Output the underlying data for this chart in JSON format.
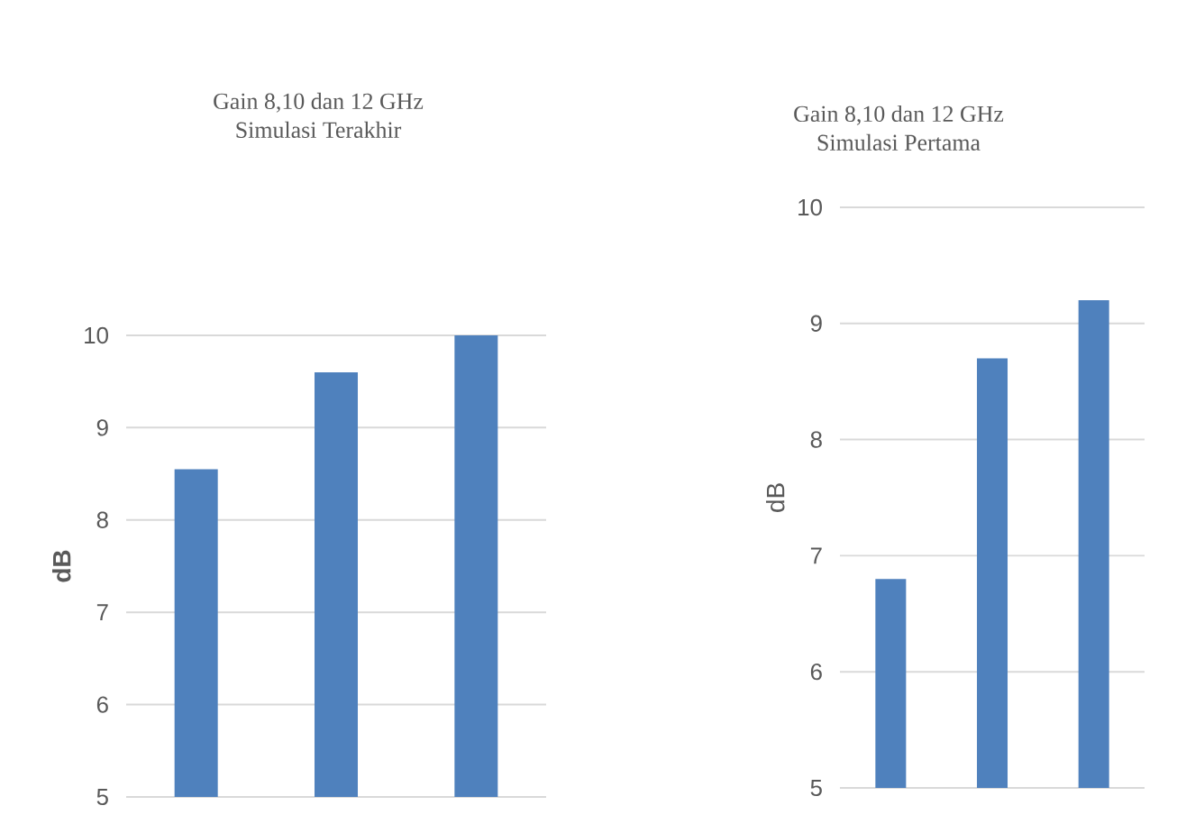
{
  "chart_data": [
    {
      "type": "bar",
      "title": "Gain 8,10 dan 12 GHz",
      "subtitle": "Simulasi Terakhir",
      "ylabel": "dB",
      "categories": [
        null,
        null,
        null
      ],
      "values": [
        8.55,
        9.6,
        10.0
      ],
      "color": "#4f81bd",
      "ylim": [
        5,
        10
      ],
      "yticks": [
        5,
        6,
        7,
        8,
        9,
        10
      ],
      "grid": "y"
    },
    {
      "type": "bar",
      "title": "Gain 8,10 dan 12 GHz",
      "subtitle": "Simulasi Pertama",
      "ylabel": "dB",
      "categories": [
        null,
        null,
        null
      ],
      "values": [
        6.8,
        8.7,
        9.2
      ],
      "color": "#4f81bd",
      "ylim": [
        5,
        10
      ],
      "yticks": [
        5,
        6,
        7,
        8,
        9,
        10
      ],
      "grid": "y"
    }
  ]
}
